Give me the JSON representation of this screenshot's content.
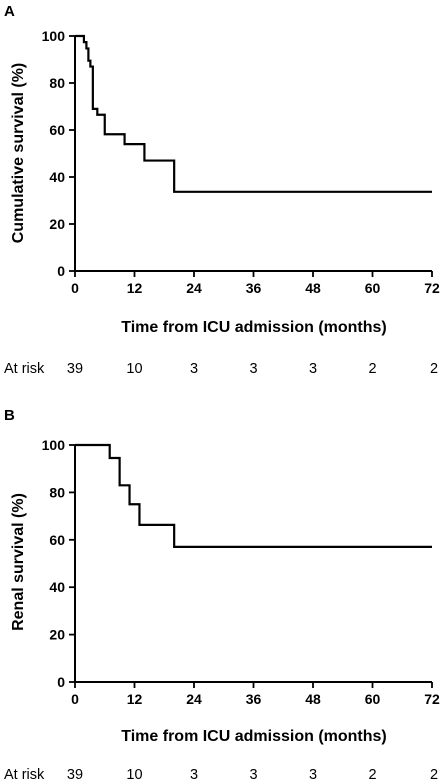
{
  "chart_data": [
    {
      "type": "line",
      "panel_label": "A",
      "ylabel": "Cumulative survival (%)",
      "xlabel": "Time from ICU admission (months)",
      "xlim": [
        0,
        72
      ],
      "ylim": [
        0,
        100
      ],
      "xticks": [
        0,
        12,
        24,
        36,
        48,
        60,
        72
      ],
      "yticks": [
        0,
        20,
        40,
        60,
        80,
        100
      ],
      "grid": false,
      "step": true,
      "series": [
        {
          "x": [
            0,
            1.8,
            2.3,
            2.7,
            3.1,
            3.6,
            4.5,
            6.0,
            10.0,
            14.0,
            20.0,
            72
          ],
          "y": [
            100,
            97.4,
            94.7,
            89.5,
            87.0,
            69.0,
            66.5,
            58.2,
            54.0,
            47.0,
            33.7,
            33.7
          ]
        }
      ],
      "at_risk": {
        "label": "At risk",
        "counts": [
          "39",
          "10",
          "3",
          "3",
          "3",
          "2",
          "2"
        ]
      }
    },
    {
      "type": "line",
      "panel_label": "B",
      "ylabel": "Renal survival (%)",
      "xlabel": "Time from ICU admission (months)",
      "xlim": [
        0,
        72
      ],
      "ylim": [
        0,
        100
      ],
      "xticks": [
        0,
        12,
        24,
        36,
        48,
        60,
        72
      ],
      "yticks": [
        0,
        20,
        40,
        60,
        80,
        100
      ],
      "grid": false,
      "step": true,
      "series": [
        {
          "x": [
            0,
            7.0,
            9.0,
            11.0,
            13.0,
            20.0,
            72
          ],
          "y": [
            100,
            94.5,
            83.0,
            75.0,
            66.3,
            57.0,
            57.0
          ]
        }
      ],
      "at_risk": {
        "label": "At risk",
        "counts": [
          "39",
          "10",
          "3",
          "3",
          "3",
          "2",
          "2"
        ]
      }
    }
  ]
}
